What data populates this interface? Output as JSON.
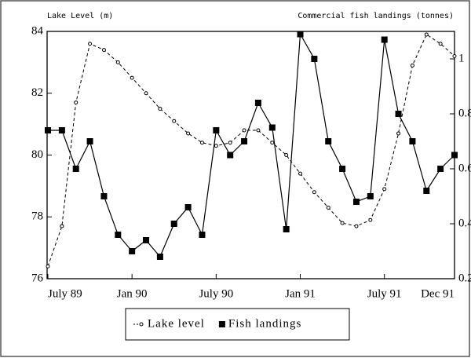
{
  "chart_data": {
    "type": "line",
    "y_label": "Lake Level (m)",
    "y2_label": "Commercial fish landings (tonnes)",
    "categories": [
      "July 89",
      null,
      null,
      null,
      null,
      null,
      "Jan 90",
      null,
      null,
      null,
      null,
      null,
      "July 90",
      null,
      null,
      null,
      null,
      null,
      "Jan 91",
      null,
      null,
      null,
      null,
      null,
      "July 91",
      null,
      null,
      null,
      null,
      "Dec 91"
    ],
    "series": [
      {
        "name": "Lake level",
        "color": "#000000",
        "style": "dashed",
        "marker": "open-circle",
        "values": [
          76.4,
          77.7,
          81.7,
          83.6,
          83.4,
          83.0,
          82.5,
          82.0,
          81.5,
          81.1,
          80.7,
          80.4,
          80.3,
          80.4,
          80.8,
          80.8,
          80.4,
          80.0,
          79.4,
          78.8,
          78.3,
          77.8,
          77.7,
          77.9,
          78.9,
          80.7,
          82.9,
          83.9,
          83.6,
          83.2
        ]
      },
      {
        "name": "Fish landings",
        "color": "#000000",
        "style": "solid",
        "marker": "filled-square",
        "axis": "y2",
        "values": [
          0.74,
          0.74,
          0.6,
          0.7,
          0.5,
          0.36,
          0.3,
          0.34,
          0.28,
          0.4,
          0.46,
          0.36,
          0.74,
          0.65,
          0.7,
          0.84,
          0.75,
          0.38,
          1.09,
          1.0,
          0.7,
          0.6,
          0.48,
          0.5,
          1.07,
          0.8,
          0.7,
          0.52,
          0.6,
          0.65
        ]
      }
    ],
    "ylim": [
      76,
      84
    ],
    "yticks": [
      76,
      78,
      80,
      82,
      84
    ],
    "y2lim": [
      0.2,
      1.1
    ],
    "y2ticks": [
      0.2,
      0.4,
      0.6,
      0.8,
      1
    ],
    "legend": "bottom"
  }
}
